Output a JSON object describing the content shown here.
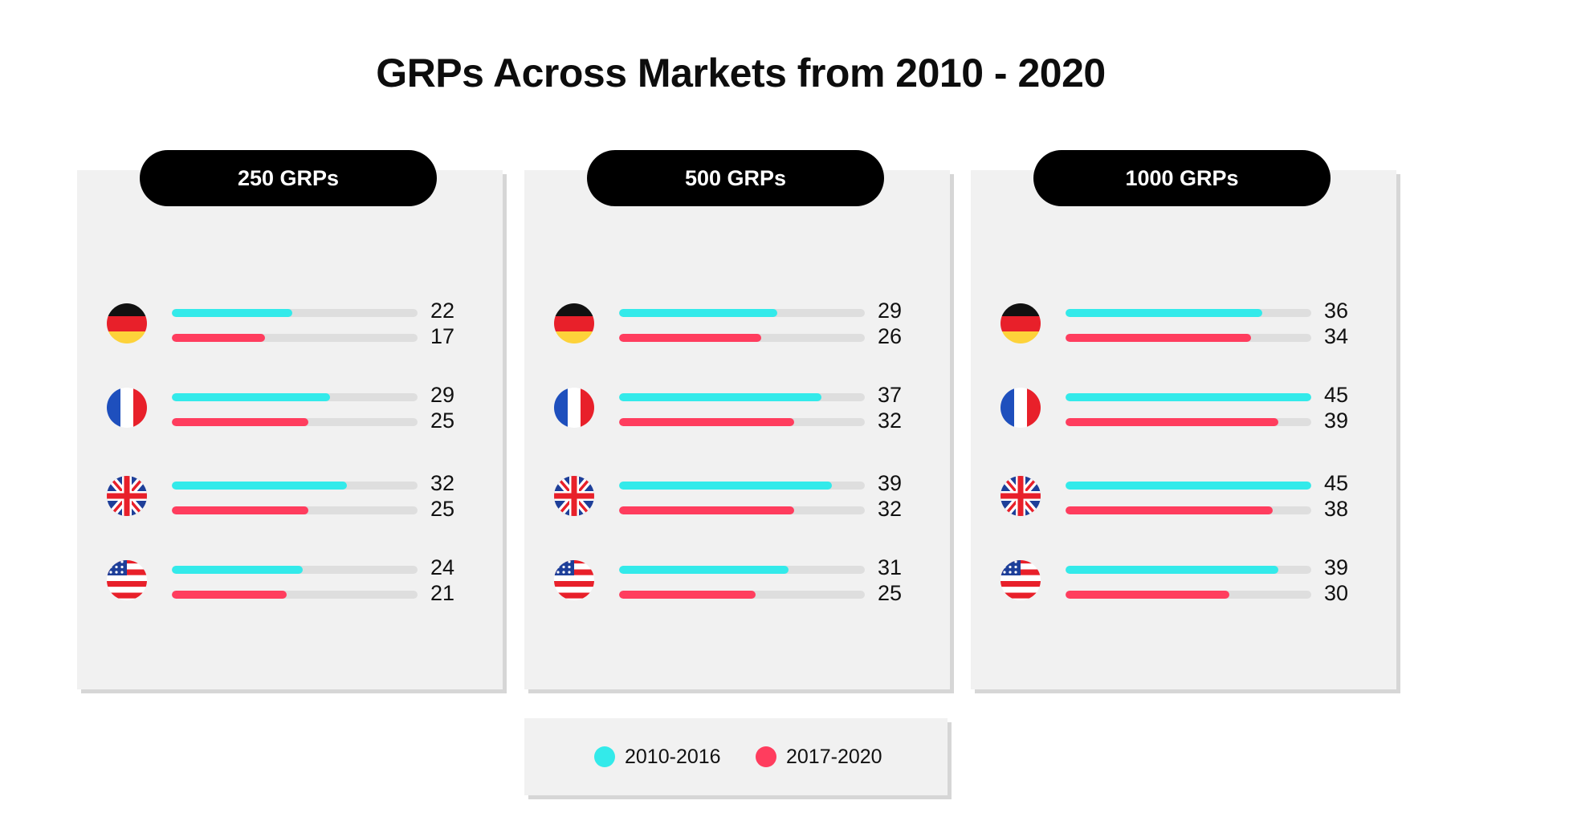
{
  "chart_data": {
    "type": "bar",
    "title": "GRPs Across Markets from 2010 - 2020",
    "xlim": [
      0,
      45
    ],
    "legend_placement": "bottom",
    "series": [
      {
        "name": "2010-2016",
        "color": "#33eaea"
      },
      {
        "name": "2017-2020",
        "color": "#ff3d5e"
      }
    ],
    "flags": [
      {
        "icon": "germany-flag-icon"
      },
      {
        "icon": "france-flag-icon"
      },
      {
        "icon": "uk-flag-icon"
      },
      {
        "icon": "usa-flag-icon"
      }
    ],
    "panels": [
      {
        "label": "250 GRPs",
        "rows": [
          {
            "values": [
              22,
              17
            ]
          },
          {
            "values": [
              29,
              25
            ]
          },
          {
            "values": [
              32,
              25
            ]
          },
          {
            "values": [
              24,
              21
            ]
          }
        ]
      },
      {
        "label": "500 GRPs",
        "rows": [
          {
            "values": [
              29,
              26
            ]
          },
          {
            "values": [
              37,
              32
            ]
          },
          {
            "values": [
              39,
              32
            ]
          },
          {
            "values": [
              31,
              25
            ]
          }
        ]
      },
      {
        "label": "1000 GRPs",
        "rows": [
          {
            "values": [
              36,
              34
            ]
          },
          {
            "values": [
              45,
              39
            ]
          },
          {
            "values": [
              45,
              38
            ]
          },
          {
            "values": [
              39,
              30
            ]
          }
        ]
      }
    ]
  }
}
